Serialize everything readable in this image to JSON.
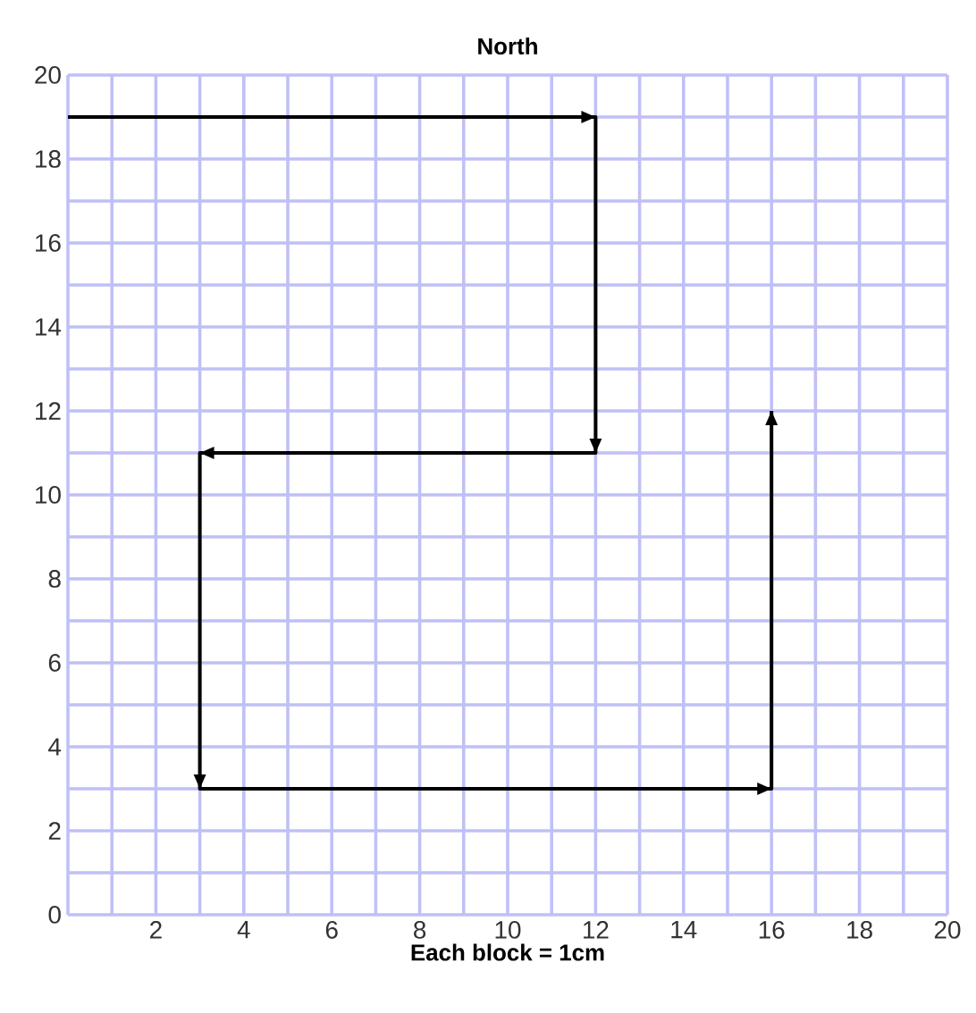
{
  "chart_data": {
    "type": "line",
    "title": "North",
    "xlabel": "Each block = 1cm",
    "x": [
      0,
      12,
      12,
      3,
      3,
      16,
      16
    ],
    "series": [
      {
        "color": "#000000",
        "values": [
          19,
          19,
          11,
          11,
          3,
          3,
          12
        ]
      }
    ],
    "xlim": [
      0,
      20
    ],
    "ylim": [
      0,
      20
    ],
    "xticks": [
      {
        "value": 0,
        "label": null
      },
      2,
      4,
      6,
      8,
      10,
      12,
      14,
      16,
      18,
      20
    ],
    "yticks": [
      0,
      2,
      4,
      6,
      8,
      10,
      12,
      14,
      16,
      18,
      20
    ],
    "grid": true,
    "marker": "none",
    "line_style": "solid"
  }
}
